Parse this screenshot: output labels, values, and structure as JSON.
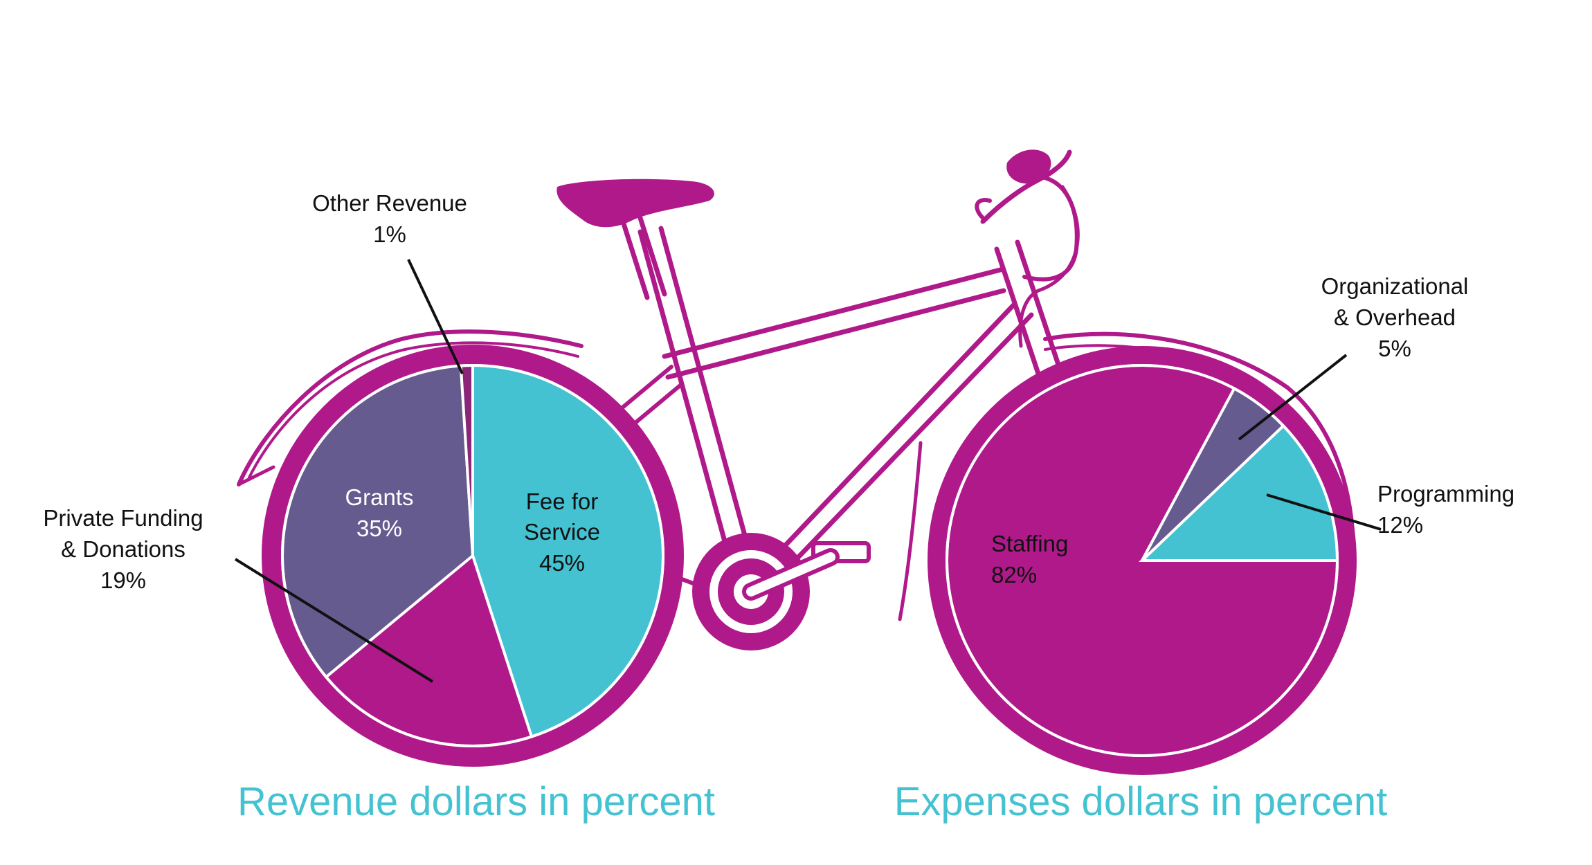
{
  "colors": {
    "magenta": "#B0198A",
    "purple": "#665B8F",
    "cyan": "#44C2D1",
    "caption": "#44C2D1",
    "bike": "#B0198A"
  },
  "chart_data": [
    {
      "type": "pie",
      "title": "Revenue dollars in percent",
      "slices": [
        {
          "name": "Fee for Service",
          "value": 45,
          "label": "45%",
          "color": "#44C2D1"
        },
        {
          "name": "Private Funding & Donations",
          "value": 19,
          "label": "19%",
          "color": "#B0198A"
        },
        {
          "name": "Grants",
          "value": 35,
          "label": "35%",
          "color": "#665B8F"
        },
        {
          "name": "Other Revenue",
          "value": 1,
          "label": "1%",
          "color": "#8A2577"
        }
      ]
    },
    {
      "type": "pie",
      "title": "Expenses dollars in percent",
      "slices": [
        {
          "name": "Staffing",
          "value": 82,
          "label": "82%",
          "color": "#B0198A"
        },
        {
          "name": "Organizational & Overhead",
          "value": 5,
          "label": "5%",
          "color": "#665B8F"
        },
        {
          "name": "Programming",
          "value": 12,
          "label": "12%",
          "color": "#44C2D1"
        }
      ]
    }
  ],
  "labels": {
    "other_revenue": [
      "Other Revenue",
      "1%"
    ],
    "grants": [
      "Grants",
      "35%"
    ],
    "fee_for_service": [
      "Fee for",
      "Service",
      "45%"
    ],
    "private_funding": [
      "Private Funding",
      "& Donations",
      "19%"
    ],
    "staffing": [
      "Staffing",
      "82%"
    ],
    "organizational": [
      "Organizational",
      "& Overhead",
      "5%"
    ],
    "programming": [
      "Programming",
      "12%"
    ]
  }
}
